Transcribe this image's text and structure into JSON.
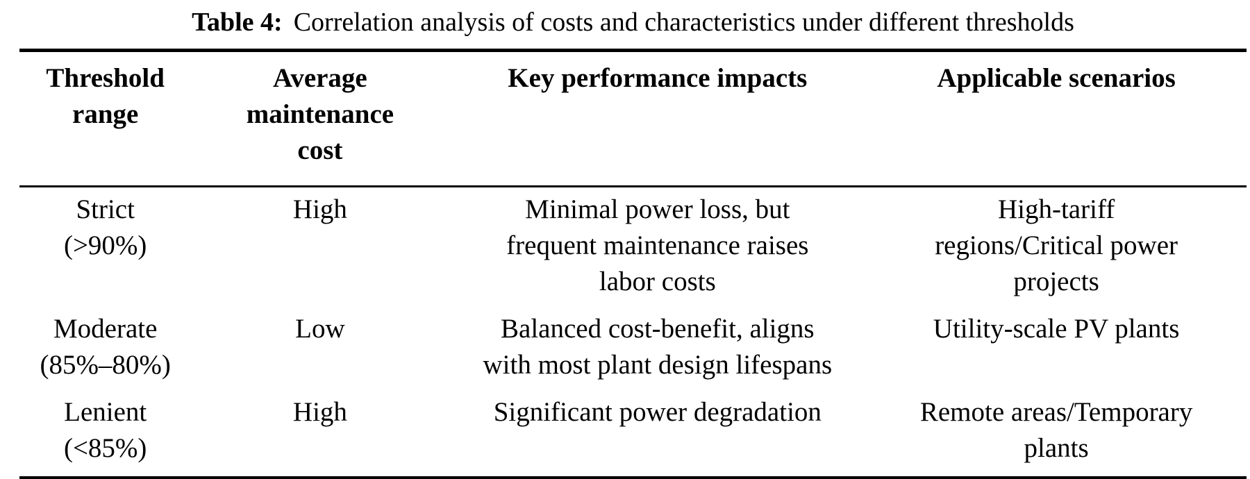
{
  "caption": {
    "label": "Table 4:",
    "text": "Correlation analysis of costs and characteristics under different thresholds"
  },
  "table": {
    "headers": [
      [
        "Threshold",
        "range"
      ],
      [
        "Average",
        "maintenance",
        "cost"
      ],
      [
        "Key performance impacts"
      ],
      [
        "Applicable scenarios"
      ]
    ],
    "rows": [
      {
        "threshold_range": [
          "Strict",
          "(>90%)"
        ],
        "avg_maintenance_cost": [
          "High"
        ],
        "key_performance_impacts": [
          "Minimal power loss, but",
          "frequent maintenance raises",
          "labor costs"
        ],
        "applicable_scenarios": [
          "High-tariff",
          "regions/Critical power",
          "projects"
        ]
      },
      {
        "threshold_range": [
          "Moderate",
          "(85%–80%)"
        ],
        "avg_maintenance_cost": [
          "Low"
        ],
        "key_performance_impacts": [
          "Balanced cost-benefit, aligns",
          "with most plant design lifespans"
        ],
        "applicable_scenarios": [
          "Utility-scale PV plants"
        ]
      },
      {
        "threshold_range": [
          "Lenient",
          "(<85%)"
        ],
        "avg_maintenance_cost": [
          "High"
        ],
        "key_performance_impacts": [
          "Significant power degradation"
        ],
        "applicable_scenarios": [
          "Remote areas/Temporary",
          "plants"
        ]
      }
    ]
  }
}
